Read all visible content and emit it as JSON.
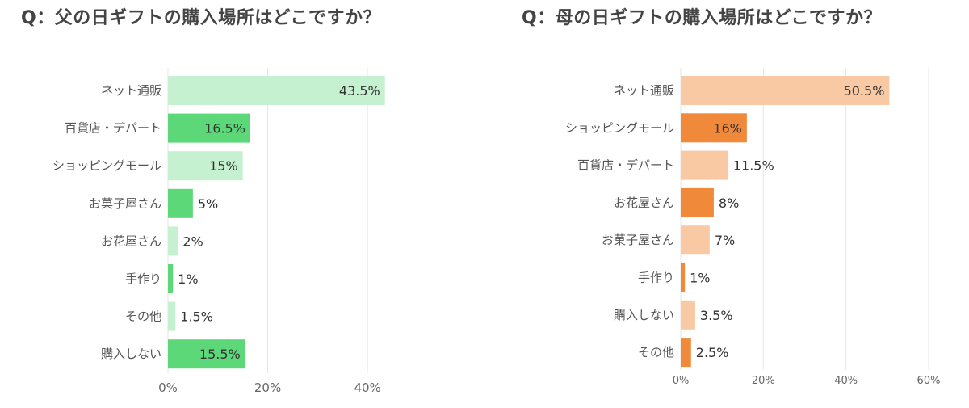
{
  "chart_data": [
    {
      "type": "bar",
      "orientation": "horizontal",
      "title": "Q：父の日ギフトの購入場所はどこですか？",
      "categories": [
        "ネット通販",
        "百貨店・デパート",
        "ショッピングモール",
        "お菓子屋さん",
        "お花屋さん",
        "手作り",
        "その他",
        "購入しない"
      ],
      "values": [
        43.5,
        16.5,
        15,
        5,
        2,
        1,
        1.5,
        15.5
      ],
      "value_labels": [
        "43.5%",
        "16.5%",
        "15%",
        "5%",
        "2%",
        "1%",
        "1.5%",
        "15.5%"
      ],
      "xlim": [
        0,
        45
      ],
      "ticks": [
        0,
        20,
        40
      ],
      "tick_labels": [
        "0%",
        "20%",
        "40%"
      ],
      "grid": true,
      "colors": {
        "strong": "#5cd879",
        "light": "#c6f1d0"
      }
    },
    {
      "type": "bar",
      "orientation": "horizontal",
      "title": "Q：母の日ギフトの購入場所はどこですか？",
      "categories": [
        "ネット通販",
        "ショッピングモール",
        "百貨店・デパート",
        "お花屋さん",
        "お菓子屋さん",
        "手作り",
        "購入しない",
        "その他"
      ],
      "values": [
        50.5,
        16,
        11.5,
        8,
        7,
        1,
        3.5,
        2.5
      ],
      "value_labels": [
        "50.5%",
        "16%",
        "11.5%",
        "8%",
        "7%",
        "1%",
        "3.5%",
        "2.5%"
      ],
      "xlim": [
        0,
        60
      ],
      "ticks": [
        0,
        20,
        40,
        60
      ],
      "tick_labels": [
        "0%",
        "20%",
        "40%",
        "60%"
      ],
      "grid": true,
      "colors": {
        "strong": "#f08a3a",
        "light": "#f9c9a3"
      }
    }
  ]
}
